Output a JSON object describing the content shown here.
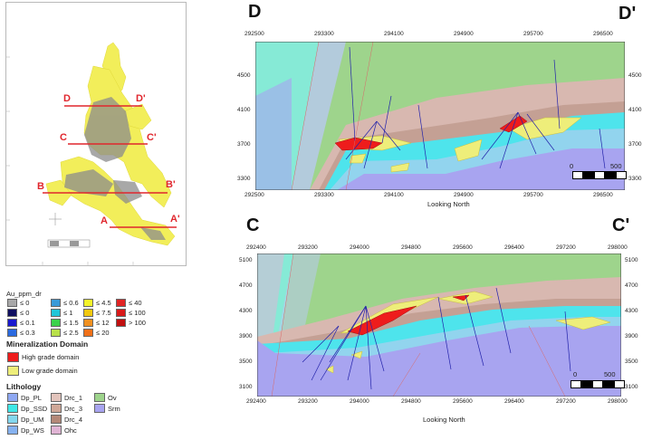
{
  "plan_map": {
    "section_labels": [
      "D",
      "D'",
      "C",
      "C'",
      "B",
      "B'",
      "A",
      "A'"
    ]
  },
  "section_top": {
    "left_label": "D",
    "right_label": "D'",
    "x_ticks": [
      "292500",
      "293300",
      "294100",
      "294900",
      "295700",
      "296500"
    ],
    "y_ticks": [
      "4500",
      "4100",
      "3700",
      "3300"
    ],
    "x_axis_title": "Looking North",
    "scale": {
      "start": "0",
      "end": "500"
    }
  },
  "section_bottom": {
    "left_label": "C",
    "right_label": "C'",
    "x_ticks": [
      "292400",
      "293200",
      "294000",
      "294800",
      "295600",
      "296400",
      "297200",
      "298000"
    ],
    "y_ticks": [
      "5100",
      "4700",
      "4300",
      "3900",
      "3500",
      "3100"
    ],
    "x_axis_title": "Looking North",
    "scale": {
      "start": "0",
      "end": "500"
    }
  },
  "legend": {
    "au_title": "Au_ppm_dr",
    "au_items": [
      {
        "label": "≤ 0",
        "color": "#a8a8a8"
      },
      {
        "label": "≤ 0",
        "color": "#101060"
      },
      {
        "label": "≤ 0.1",
        "color": "#1a1acf"
      },
      {
        "label": "≤ 0.3",
        "color": "#2a6ae0"
      },
      {
        "label": "≤ 0.6",
        "color": "#3a9ad8"
      },
      {
        "label": "≤ 1",
        "color": "#20c6d8"
      },
      {
        "label": "≤ 1.5",
        "color": "#3ad24a"
      },
      {
        "label": "≤ 2.5",
        "color": "#b8e04a"
      },
      {
        "label": "≤ 4.5",
        "color": "#f4f42a"
      },
      {
        "label": "≤ 7.5",
        "color": "#f2c80f"
      },
      {
        "label": "≤ 12",
        "color": "#f09020"
      },
      {
        "label": "≤ 20",
        "color": "#f07018"
      },
      {
        "label": "≤ 40",
        "color": "#e02424"
      },
      {
        "label": "≤ 100",
        "color": "#d81a1a"
      },
      {
        "label": "> 100",
        "color": "#c01010"
      }
    ],
    "mineral_title": "Mineralization Domain",
    "mineral_items": [
      {
        "label": "High grade domain",
        "color": "#ee1c1c"
      },
      {
        "label": "Low grade domain",
        "color": "#eeee7a"
      }
    ],
    "litho_title": "Lithology",
    "litho_items": [
      {
        "label": "Dp_PL",
        "color": "#8fa8f2"
      },
      {
        "label": "Dp_SSD",
        "color": "#3fe8e8"
      },
      {
        "label": "Dp_UM",
        "color": "#84d8ee"
      },
      {
        "label": "Dp_WS",
        "color": "#86b2f0"
      },
      {
        "label": "Drc_1",
        "color": "#e2c4bc"
      },
      {
        "label": "Drc_3",
        "color": "#d0a898"
      },
      {
        "label": "Drc_4",
        "color": "#b48878"
      },
      {
        "label": "Ohc",
        "color": "#e0b4d4"
      },
      {
        "label": "Ov",
        "color": "#9ed48c"
      },
      {
        "label": "Srm",
        "color": "#a8a4f0"
      }
    ]
  }
}
